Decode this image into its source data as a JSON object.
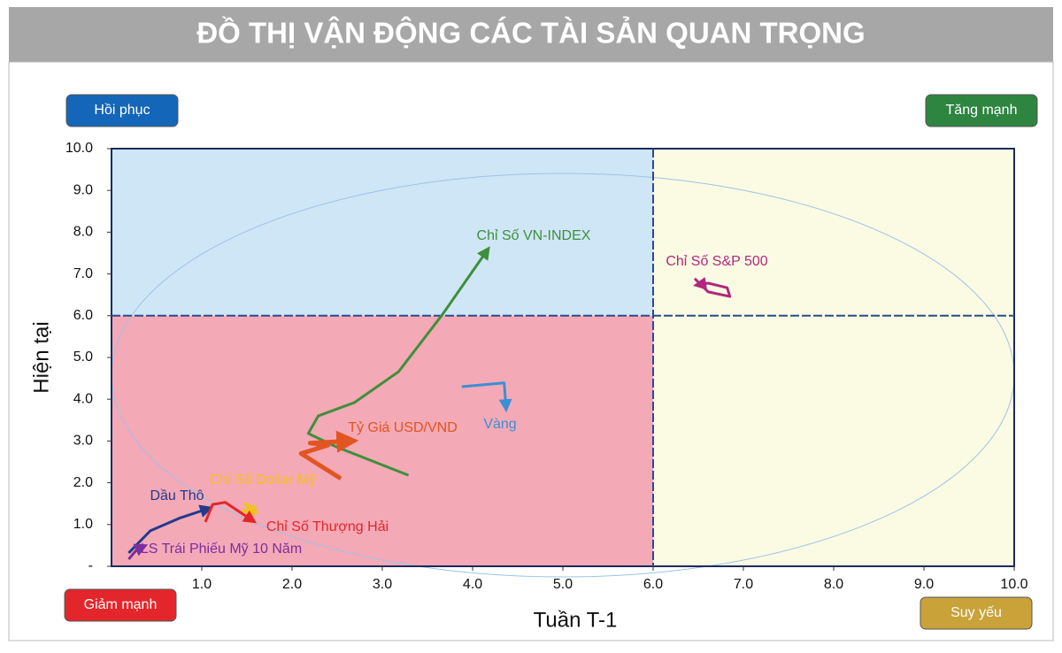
{
  "chart_data": {
    "type": "line",
    "title": "ĐỒ THỊ VẬN ĐỘNG CÁC TÀI SẢN QUAN TRỌNG",
    "x_label": "Tuần T-1",
    "y_label": "Hiện tại",
    "xlim": [
      0,
      10
    ],
    "ylim": [
      0,
      10
    ],
    "xticks": [
      {
        "value": 1,
        "label": "1.0"
      },
      {
        "value": 2,
        "label": "2.0"
      },
      {
        "value": 3,
        "label": "3.0"
      },
      {
        "value": 4,
        "label": "4.0"
      },
      {
        "value": 5,
        "label": "5.0"
      },
      {
        "value": 6,
        "label": "6.0"
      },
      {
        "value": 7,
        "label": "7.0"
      },
      {
        "value": 8,
        "label": "8.0"
      },
      {
        "value": 9,
        "label": "9.0"
      },
      {
        "value": 10,
        "label": "10.0"
      }
    ],
    "yticks": [
      {
        "value": 0,
        "label": "-"
      },
      {
        "value": 1,
        "label": "1.0"
      },
      {
        "value": 2,
        "label": "2.0"
      },
      {
        "value": 3,
        "label": "3.0"
      },
      {
        "value": 4,
        "label": "4.0"
      },
      {
        "value": 5,
        "label": "5.0"
      },
      {
        "value": 6,
        "label": "6.0"
      },
      {
        "value": 7,
        "label": "7.0"
      },
      {
        "value": 8,
        "label": "8.0"
      },
      {
        "value": 9,
        "label": "9.0"
      },
      {
        "value": 10,
        "label": "10.0"
      }
    ],
    "quadrant_split": {
      "x": 6,
      "y": 6
    },
    "quadrants": [
      {
        "label": "Hồi phục",
        "color": "#1466b8",
        "fill": "#cfe6f7"
      },
      {
        "label": "Tăng mạnh",
        "color": "#2e8540",
        "fill": "#fbfbe3"
      },
      {
        "label": "Giảm mạnh",
        "color": "#e3262b",
        "fill": "#f4a9b6"
      },
      {
        "label": "Suy yếu",
        "color": "#c9a23a",
        "fill": "#fbfbe3"
      }
    ],
    "series": [
      {
        "name": "Chỉ Số VN-INDEX",
        "color": "#3f8f3a",
        "x": [
          3.29,
          2.49,
          2.18,
          2.29,
          2.69,
          3.18,
          3.67,
          4.16
        ],
        "values": [
          2.18,
          2.86,
          3.18,
          3.6,
          3.92,
          4.66,
          6.04,
          7.56
        ]
      },
      {
        "name": "Chỉ Số S&P 500",
        "color": "#b0287e",
        "x": [
          6.46,
          6.61,
          6.85,
          6.82,
          6.61,
          6.5
        ],
        "values": [
          6.89,
          6.57,
          6.46,
          6.67,
          6.78,
          6.74
        ]
      },
      {
        "name": "Vàng",
        "color": "#3b8fd4",
        "x": [
          3.88,
          4.35,
          4.37
        ],
        "values": [
          4.3,
          4.39,
          3.81
        ]
      },
      {
        "name": "Tỷ Giá USD/VND",
        "color": "#e25522",
        "x": [
          2.54,
          2.1,
          2.4,
          2.2,
          2.64
        ],
        "values": [
          2.1,
          2.7,
          2.9,
          2.95,
          3.0
        ]
      },
      {
        "name": "Chỉ Số Dollar Mỹ",
        "color": "#f2c21b",
        "x": [
          1.46,
          1.6,
          1.45,
          1.58
        ],
        "values": [
          1.5,
          1.4,
          1.32,
          1.3
        ]
      },
      {
        "name": "Dầu Thô",
        "color": "#223a8c",
        "x": [
          0.19,
          0.43,
          0.75,
          1.07
        ],
        "values": [
          0.32,
          0.85,
          1.15,
          1.38
        ]
      },
      {
        "name": "Chỉ Số Thượng Hải",
        "color": "#e3262b",
        "x": [
          1.04,
          1.12,
          1.26,
          1.56
        ],
        "values": [
          1.06,
          1.48,
          1.53,
          1.1
        ]
      },
      {
        "name": "LS Trái Phiếu Mỹ 10 Năm",
        "color": "#7b2fa0",
        "x": [
          0.19,
          0.28,
          0.35
        ],
        "values": [
          0.17,
          0.4,
          0.47
        ]
      }
    ]
  }
}
